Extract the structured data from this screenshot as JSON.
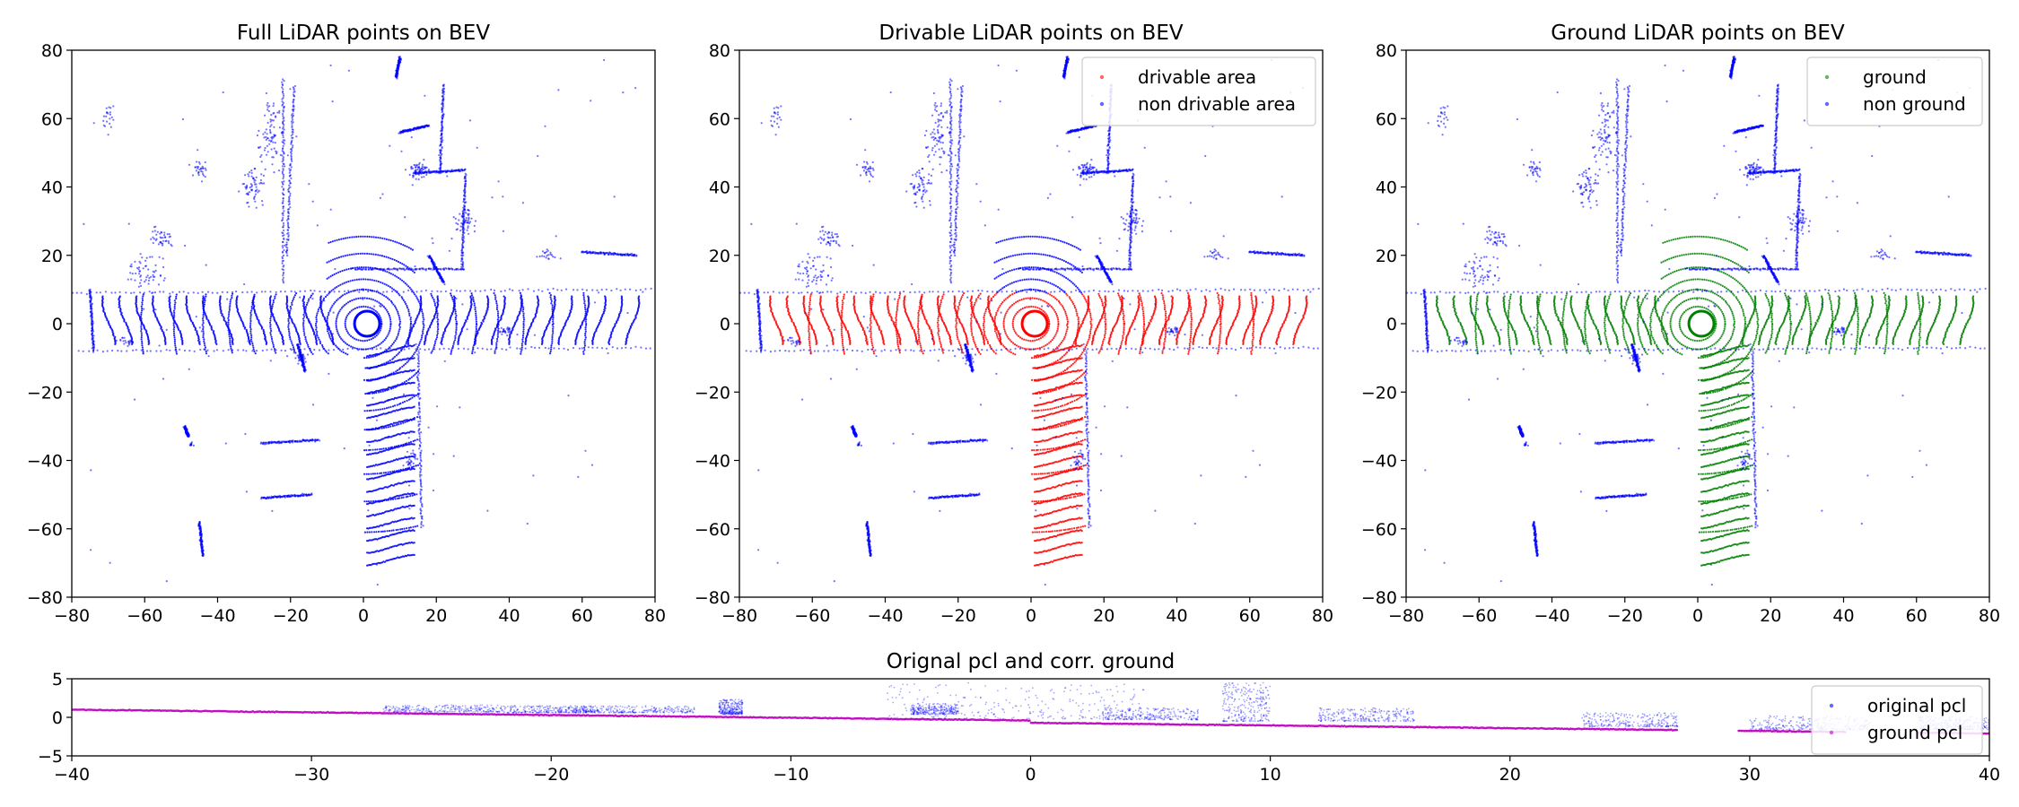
{
  "colors": {
    "non_drivable": "#0000ff",
    "drivable": "#ff0000",
    "ground": "#008000",
    "ground_pcl": "#bf00bf",
    "axes": "#000000",
    "legend_border": "#cccccc"
  },
  "chart_data": [
    {
      "type": "scatter",
      "title": "Full LiDAR points on BEV",
      "xlabel": "",
      "ylabel": "",
      "xlim": [
        -80,
        80
      ],
      "ylim": [
        -80,
        80
      ],
      "xticks": [
        -80,
        -60,
        -40,
        -20,
        0,
        20,
        40,
        60,
        80
      ],
      "yticks": [
        -80,
        -60,
        -40,
        -20,
        0,
        20,
        40,
        60,
        80
      ],
      "grid": false,
      "legend": null,
      "series": [
        {
          "color": "#0000ff",
          "description": "all lidar points, bird's-eye view of a road intersection centered at (0,0)"
        }
      ]
    },
    {
      "type": "scatter",
      "title": "Drivable LiDAR points on BEV",
      "xlabel": "",
      "ylabel": "",
      "xlim": [
        -80,
        80
      ],
      "ylim": [
        -80,
        80
      ],
      "xticks": [
        -80,
        -60,
        -40,
        -20,
        0,
        20,
        40,
        60,
        80
      ],
      "yticks": [
        -80,
        -60,
        -40,
        -20,
        0,
        20,
        40,
        60,
        80
      ],
      "grid": false,
      "legend": "top-right",
      "series": [
        {
          "name": "drivable area",
          "color": "#ff0000"
        },
        {
          "name": "non drivable area",
          "color": "#0000ff"
        }
      ]
    },
    {
      "type": "scatter",
      "title": "Ground LiDAR points on BEV",
      "xlabel": "",
      "ylabel": "",
      "xlim": [
        -80,
        80
      ],
      "ylim": [
        -80,
        80
      ],
      "xticks": [
        -80,
        -60,
        -40,
        -20,
        0,
        20,
        40,
        60,
        80
      ],
      "yticks": [
        -80,
        -60,
        -40,
        -20,
        0,
        20,
        40,
        60,
        80
      ],
      "grid": false,
      "legend": "top-right",
      "series": [
        {
          "name": "ground",
          "color": "#008000"
        },
        {
          "name": "non ground",
          "color": "#0000ff"
        }
      ]
    },
    {
      "type": "scatter",
      "title": "Orignal pcl and corr. ground",
      "xlabel": "",
      "ylabel": "",
      "xlim": [
        -40,
        40
      ],
      "ylim": [
        -5,
        5
      ],
      "xticks": [
        -40,
        -30,
        -20,
        -10,
        0,
        10,
        20,
        30,
        40
      ],
      "yticks": [
        -5,
        0,
        5
      ],
      "grid": false,
      "legend": "top-right",
      "series": [
        {
          "name": "original pcl",
          "color": "#0000ff"
        },
        {
          "name": "ground pcl",
          "color": "#bf00bf"
        }
      ]
    }
  ]
}
